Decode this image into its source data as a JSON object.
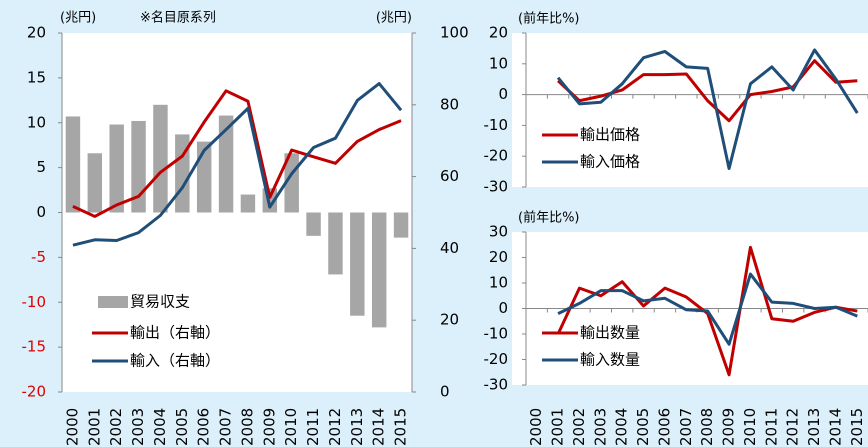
{
  "chart_data": [
    {
      "type": "combo",
      "y_label": "(兆円)",
      "note": "※名目原系列",
      "y2_label": "(兆円)",
      "categories": [
        "2000",
        "2001",
        "2002",
        "2003",
        "2004",
        "2005",
        "2006",
        "2007",
        "2008",
        "2009",
        "2010",
        "2011",
        "2012",
        "2013",
        "2014",
        "2015"
      ],
      "series": [
        {
          "name": "貿易収支",
          "type": "bar",
          "color": "#a6a6a6",
          "values": [
            10.7,
            6.6,
            9.8,
            10.2,
            12.0,
            8.7,
            7.9,
            10.8,
            2.0,
            2.7,
            6.6,
            -2.6,
            -6.9,
            -11.5,
            -12.8,
            -2.8
          ]
        },
        {
          "name": "輸出（右軸）",
          "type": "line",
          "axis": "y2",
          "color": "#c00000",
          "values": [
            51.7,
            48.9,
            52.1,
            54.5,
            61.2,
            65.7,
            75.2,
            83.9,
            81.0,
            54.2,
            67.4,
            65.5,
            63.7,
            69.8,
            73.1,
            75.6
          ]
        },
        {
          "name": "輸入（右軸）",
          "type": "line",
          "axis": "y2",
          "color": "#1f4e79",
          "values": [
            40.9,
            42.4,
            42.2,
            44.4,
            49.2,
            56.9,
            67.3,
            73.1,
            79.0,
            51.5,
            60.8,
            68.1,
            70.7,
            81.2,
            85.9,
            78.5
          ]
        }
      ],
      "ylim": [
        -20,
        20
      ],
      "yticks": [
        -20,
        -15,
        -10,
        -5,
        0,
        5,
        10,
        15,
        20
      ],
      "negative_tick_color": "#e00000",
      "y2lim": [
        0,
        100
      ],
      "y2ticks": [
        0,
        20,
        40,
        60,
        80,
        100
      ]
    },
    {
      "type": "line",
      "y_label": "(前年比%)",
      "categories": [
        null,
        null,
        null,
        null,
        null,
        null,
        null,
        null,
        null,
        null,
        null,
        null,
        null,
        null,
        null,
        null
      ],
      "series": [
        {
          "name": "輸出価格",
          "color": "#c00000",
          "values": [
            null,
            4.5,
            -2,
            -0.5,
            1.5,
            6.5,
            6.5,
            6.7,
            -2,
            -8.5,
            0,
            1,
            2.5,
            11,
            4,
            4.5
          ]
        },
        {
          "name": "輸入価格",
          "color": "#1f4e79",
          "values": [
            null,
            5.5,
            -3,
            -2.5,
            3.5,
            12,
            14,
            9,
            8.5,
            -24,
            3.5,
            9,
            1.5,
            14.5,
            5,
            -6
          ]
        }
      ],
      "ylim": [
        -30,
        20
      ],
      "yticks": [
        -30,
        -20,
        -10,
        0,
        10,
        20
      ]
    },
    {
      "type": "line",
      "y_label": "(前年比%)",
      "categories": [
        "2000",
        "2001",
        "2002",
        "2003",
        "2004",
        "2005",
        "2006",
        "2007",
        "2008",
        "2009",
        "2010",
        "2011",
        "2012",
        "2013",
        "2014",
        "2015"
      ],
      "series": [
        {
          "name": "輸出数量",
          "color": "#c00000",
          "values": [
            null,
            -10,
            8,
            5,
            10.5,
            1,
            8,
            4.5,
            -2,
            -26,
            24,
            -4,
            -5,
            -1.5,
            0.5,
            -1
          ]
        },
        {
          "name": "輸入数量",
          "color": "#1f4e79",
          "values": [
            null,
            -2,
            2,
            7,
            7,
            3,
            4,
            -0.5,
            -1,
            -14,
            13.5,
            2.5,
            2,
            0,
            0.5,
            -3
          ]
        }
      ],
      "ylim": [
        -30,
        30
      ],
      "yticks": [
        -30,
        -20,
        -10,
        0,
        10,
        20,
        30
      ]
    }
  ]
}
